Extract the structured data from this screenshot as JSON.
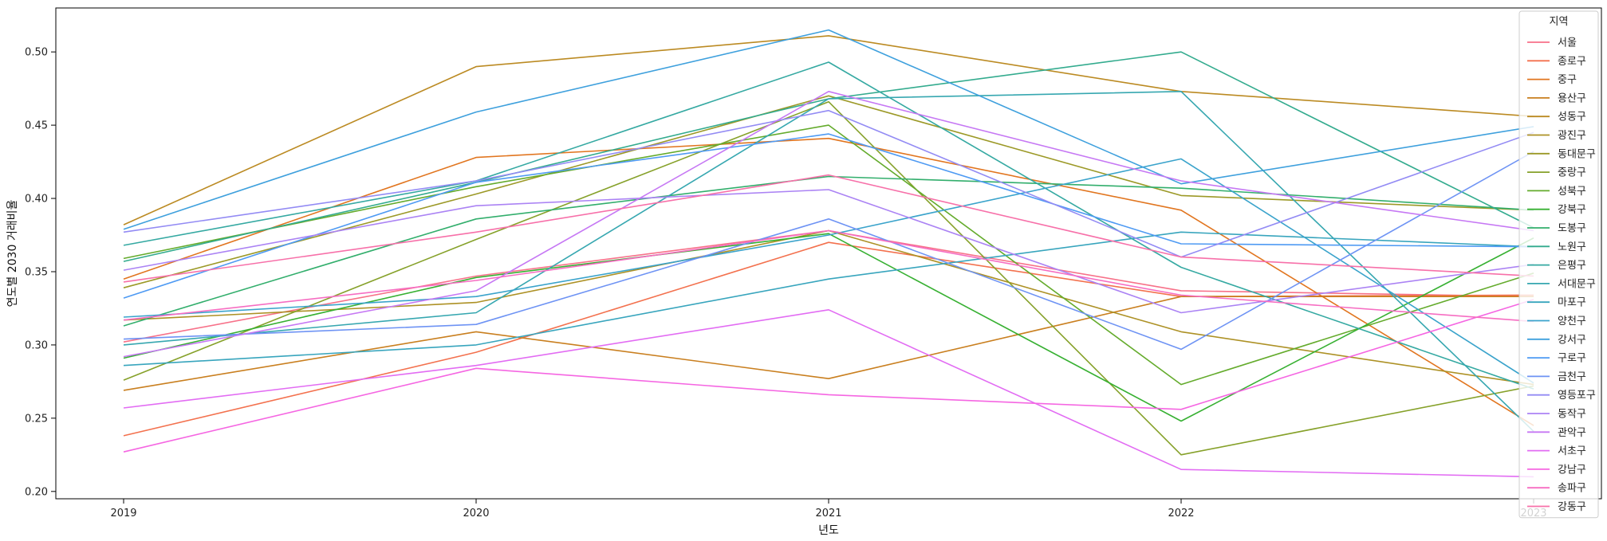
{
  "chart_data": {
    "type": "line",
    "xlabel": "년도",
    "ylabel": "연도별 2030 거래비율",
    "x": [
      2019,
      2020,
      2021,
      2022,
      2023
    ],
    "ylim": [
      0.195,
      0.53
    ],
    "yticks": [
      0.2,
      0.25,
      0.3,
      0.35,
      0.4,
      0.45,
      0.5
    ],
    "grid": false,
    "legend": {
      "title": "지역",
      "placement": "top-right"
    },
    "series": [
      {
        "name": "서울",
        "color": "#f77189",
        "values": [
          0.302,
          0.347,
          0.378,
          0.337,
          0.333
        ]
      },
      {
        "name": "종로구",
        "color": "#f3714e",
        "values": [
          0.238,
          0.295,
          0.37,
          0.333,
          0.334
        ]
      },
      {
        "name": "중구",
        "color": "#e1751f",
        "values": [
          0.345,
          0.428,
          0.441,
          0.392,
          0.245
        ]
      },
      {
        "name": "용산구",
        "color": "#c97f1f",
        "values": [
          0.269,
          0.309,
          0.277,
          0.333,
          0.333
        ]
      },
      {
        "name": "성동구",
        "color": "#bb8a22",
        "values": [
          0.382,
          0.49,
          0.511,
          0.473,
          0.456
        ]
      },
      {
        "name": "광진구",
        "color": "#ad9125",
        "values": [
          0.317,
          0.329,
          0.378,
          0.309,
          0.273
        ]
      },
      {
        "name": "동대문구",
        "color": "#9c9927",
        "values": [
          0.339,
          0.403,
          0.47,
          0.402,
          0.392
        ]
      },
      {
        "name": "중랑구",
        "color": "#86a12a",
        "values": [
          0.276,
          0.372,
          0.466,
          0.225,
          0.272
        ]
      },
      {
        "name": "성북구",
        "color": "#64ab2c",
        "values": [
          0.359,
          0.408,
          0.45,
          0.273,
          0.349
        ]
      },
      {
        "name": "강북구",
        "color": "#37b032",
        "values": [
          0.291,
          0.346,
          0.376,
          0.248,
          0.373
        ]
      },
      {
        "name": "도봉구",
        "color": "#32ae6c",
        "values": [
          0.313,
          0.386,
          0.415,
          0.407,
          0.392
        ]
      },
      {
        "name": "노원구",
        "color": "#33ab8e",
        "values": [
          0.357,
          0.411,
          0.468,
          0.5,
          0.38
        ]
      },
      {
        "name": "은평구",
        "color": "#35a9a2",
        "values": [
          0.368,
          0.412,
          0.493,
          0.353,
          0.27
        ]
      },
      {
        "name": "서대문구",
        "color": "#36a7b0",
        "values": [
          0.3,
          0.322,
          0.468,
          0.473,
          0.241
        ]
      },
      {
        "name": "마포구",
        "color": "#38a5bd",
        "values": [
          0.286,
          0.3,
          0.345,
          0.377,
          0.367
        ]
      },
      {
        "name": "양천구",
        "color": "#3aa3cb",
        "values": [
          0.319,
          0.333,
          0.375,
          0.427,
          0.274
        ]
      },
      {
        "name": "강서구",
        "color": "#3ea0dd",
        "values": [
          0.379,
          0.459,
          0.515,
          0.41,
          0.449
        ]
      },
      {
        "name": "구로구",
        "color": "#4e9af3",
        "values": [
          0.332,
          0.411,
          0.444,
          0.369,
          0.367
        ]
      },
      {
        "name": "금천구",
        "color": "#6e93f4",
        "values": [
          0.304,
          0.314,
          0.386,
          0.297,
          0.432
        ]
      },
      {
        "name": "영등포구",
        "color": "#938bf4",
        "values": [
          0.377,
          0.412,
          0.46,
          0.36,
          0.445
        ]
      },
      {
        "name": "동작구",
        "color": "#ab83f4",
        "values": [
          0.351,
          0.395,
          0.406,
          0.322,
          0.355
        ]
      },
      {
        "name": "관악구",
        "color": "#c678f4",
        "values": [
          0.292,
          0.337,
          0.473,
          0.412,
          0.378
        ]
      },
      {
        "name": "서초구",
        "color": "#e26cf3",
        "values": [
          0.257,
          0.286,
          0.324,
          0.215,
          0.21
        ]
      },
      {
        "name": "강남구",
        "color": "#f566e2",
        "values": [
          0.227,
          0.284,
          0.266,
          0.256,
          0.331
        ]
      },
      {
        "name": "송파구",
        "color": "#f66dc2",
        "values": [
          0.317,
          0.344,
          0.378,
          0.334,
          0.316
        ]
      },
      {
        "name": "강동구",
        "color": "#f770a9",
        "values": [
          0.343,
          0.377,
          0.416,
          0.36,
          0.347
        ]
      }
    ]
  }
}
